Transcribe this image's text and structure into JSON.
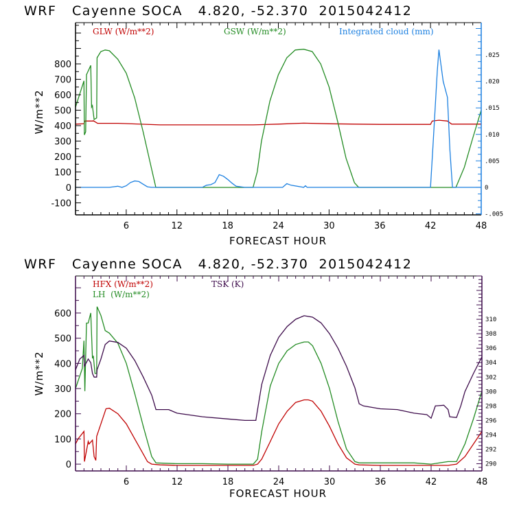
{
  "chart_data": [
    {
      "type": "line",
      "title": "WRF   Cayenne SOCA   4.820, -52.370  2015042412",
      "xlabel": "FORECAST HOUR",
      "ylabel": "W/m**2",
      "xlim": [
        0,
        48
      ],
      "ylim": [
        -178,
        1067
      ],
      "y2lim": [
        -0.0052,
        0.0311
      ],
      "x_ticks": [
        6,
        12,
        18,
        24,
        30,
        36,
        42,
        48
      ],
      "x_tick_labels": [
        "6",
        "12",
        "18",
        "24",
        "30",
        "36",
        "42",
        "48"
      ],
      "y_ticks": [
        -100,
        0,
        100,
        200,
        300,
        400,
        500,
        600,
        700,
        800
      ],
      "y_tick_labels": [
        "-100",
        "0",
        "100",
        "200",
        "300",
        "400",
        "500",
        "600",
        "700",
        "800"
      ],
      "y2_ticks": [
        -0.005,
        0,
        0.005,
        0.01,
        0.015,
        0.02,
        0.025
      ],
      "y2_tick_labels": [
        "-.005",
        "0",
        ".005",
        ".010",
        ".015",
        ".020",
        ".025"
      ],
      "axis_color": "#1a7fe0",
      "legend_placement": "top",
      "series": [
        {
          "name": "GLW (W/m**2)",
          "color": "#c00000",
          "axis": "left",
          "x": [
            0,
            1,
            1.1,
            2,
            2.1,
            2.6,
            3,
            5,
            10,
            15,
            18,
            21,
            24,
            27,
            30,
            33,
            36,
            39,
            42,
            42.2,
            43,
            44,
            44.5,
            46,
            48
          ],
          "y": [
            410,
            412,
            430,
            430,
            432,
            415,
            415,
            415,
            405,
            405,
            405,
            405,
            410,
            416,
            412,
            410,
            408,
            408,
            408,
            430,
            435,
            430,
            410,
            410,
            410
          ]
        },
        {
          "name": "GSW (W/m**2)",
          "color": "#228b22",
          "axis": "left",
          "x": [
            0,
            1,
            1.05,
            1.2,
            1.3,
            1.8,
            1.9,
            2.0,
            2.2,
            2.5,
            2.55,
            3,
            3.5,
            4,
            5,
            6,
            7,
            8,
            9,
            9.5,
            10,
            15,
            21,
            21.5,
            22,
            23,
            24,
            25,
            26,
            27,
            28,
            29,
            30,
            31,
            32,
            33,
            33.5,
            40,
            45,
            46,
            47,
            48
          ],
          "y": [
            520,
            690,
            340,
            360,
            730,
            790,
            520,
            530,
            440,
            450,
            840,
            880,
            890,
            885,
            830,
            740,
            580,
            360,
            120,
            0,
            0,
            0,
            0,
            100,
            300,
            560,
            730,
            840,
            890,
            895,
            880,
            800,
            650,
            430,
            190,
            30,
            0,
            0,
            0,
            130,
            320,
            500
          ]
        },
        {
          "name": "Integrated cloud (mm)",
          "color": "#1a7fe0",
          "axis": "right",
          "x": [
            0,
            4,
            5,
            5.5,
            6,
            6.5,
            7,
            7.5,
            8,
            8.5,
            9,
            15,
            15.5,
            16,
            16.5,
            17,
            17.5,
            18,
            18.5,
            19,
            20,
            24.5,
            25,
            25.5,
            27,
            27.2,
            27.4,
            42,
            42.3,
            42.8,
            43,
            43.5,
            44,
            44.3,
            44.6,
            48
          ],
          "y": [
            0,
            0,
            0.0002,
            0,
            0.0003,
            0.0009,
            0.0012,
            0.0011,
            0.0006,
            0.0001,
            0,
            0,
            0.0004,
            0.0005,
            0.0009,
            0.0024,
            0.0021,
            0.0015,
            0.0008,
            0.0002,
            0,
            0,
            0.0007,
            0.0004,
            0,
            0.0003,
            0,
            0,
            0.008,
            0.022,
            0.026,
            0.02,
            0.017,
            0.007,
            0,
            0
          ]
        }
      ]
    },
    {
      "type": "line",
      "title": "WRF   Cayenne SOCA   4.820, -52.370  2015042412",
      "xlabel": "FORECAST HOUR",
      "ylabel": "W/m**2",
      "xlim": [
        0,
        48
      ],
      "ylim": [
        -27,
        747
      ],
      "y2lim": [
        289,
        316
      ],
      "x_ticks": [
        6,
        12,
        18,
        24,
        30,
        36,
        42,
        48
      ],
      "x_tick_labels": [
        "6",
        "12",
        "18",
        "24",
        "30",
        "36",
        "42",
        "48"
      ],
      "y_ticks": [
        0,
        100,
        200,
        300,
        400,
        500,
        600
      ],
      "y_tick_labels": [
        "0",
        "100",
        "200",
        "300",
        "400",
        "500",
        "600"
      ],
      "y2_ticks": [
        290,
        292,
        294,
        296,
        298,
        300,
        302,
        304,
        306,
        308,
        310
      ],
      "y2_tick_labels": [
        "290",
        "292",
        "294",
        "296",
        "298",
        "300",
        "302",
        "304",
        "306",
        "308",
        "310"
      ],
      "axis_color": "#3c0a4a",
      "legend_placement": "top",
      "series": [
        {
          "name": "HFX (W/m**2)",
          "color": "#c00000",
          "axis": "left",
          "x": [
            0,
            0.3,
            1,
            1.05,
            1.5,
            1.6,
            2,
            2.2,
            2.4,
            2.5,
            3,
            3.6,
            4,
            5,
            6,
            7,
            8,
            8.5,
            9,
            10,
            12,
            15,
            18,
            21,
            21.5,
            22,
            23,
            24,
            25,
            26,
            27,
            27.5,
            28,
            29,
            30,
            31,
            32,
            33,
            33.5,
            36,
            40,
            44,
            45,
            46,
            47,
            48
          ],
          "y": [
            80,
            100,
            130,
            10,
            90,
            80,
            95,
            30,
            15,
            110,
            160,
            220,
            222,
            200,
            160,
            100,
            40,
            10,
            0,
            -3,
            -5,
            -5,
            -5,
            -5,
            0,
            20,
            90,
            160,
            210,
            245,
            255,
            255,
            250,
            210,
            150,
            80,
            25,
            0,
            -3,
            -5,
            -5,
            -5,
            0,
            30,
            80,
            130
          ]
        },
        {
          "name": "LH (W/m**2)",
          "color": "#228b22",
          "axis": "left",
          "x": [
            0,
            0.8,
            1,
            1.1,
            1.3,
            1.5,
            1.8,
            2.0,
            2.1,
            2.3,
            2.5,
            2.55,
            3,
            3.5,
            4,
            5,
            6,
            7,
            8,
            9,
            9.5,
            12,
            15,
            18,
            21,
            21.5,
            22,
            23,
            24,
            25,
            26,
            27,
            27.5,
            28,
            29,
            30,
            31,
            32,
            33,
            33.5,
            36,
            40,
            42,
            44,
            45,
            46,
            47,
            48
          ],
          "y": [
            300,
            380,
            490,
            290,
            560,
            560,
            600,
            420,
            430,
            360,
            360,
            625,
            590,
            530,
            520,
            480,
            400,
            280,
            150,
            30,
            5,
            2,
            2,
            0,
            0,
            20,
            130,
            310,
            400,
            450,
            475,
            485,
            485,
            470,
            400,
            300,
            170,
            60,
            10,
            5,
            5,
            5,
            0,
            10,
            10,
            80,
            180,
            290
          ]
        },
        {
          "name": "TSK (K)",
          "color": "#3c0a4a",
          "axis": "right",
          "x": [
            0,
            0.5,
            1,
            1.05,
            1.5,
            1.8,
            2,
            2.2,
            2.5,
            2.55,
            3,
            3.5,
            4,
            5,
            6,
            7,
            8,
            9,
            9.5,
            10,
            11,
            12,
            15,
            18,
            20,
            21.3,
            21.5,
            22,
            23,
            24,
            25,
            26,
            27,
            28,
            29,
            30,
            31,
            32,
            33,
            33.5,
            34,
            36,
            38,
            40,
            41.5,
            42,
            42.2,
            42.5,
            43.5,
            44,
            44.2,
            45,
            45.5,
            46,
            47,
            48
          ],
          "y": [
            303,
            304.5,
            305,
            303.5,
            304.5,
            304,
            302.5,
            302,
            302,
            303,
            304.5,
            306.5,
            307,
            306.8,
            306,
            304.3,
            302,
            299.5,
            297.5,
            297.5,
            297.5,
            297,
            296.5,
            296.2,
            296,
            296,
            297.5,
            301,
            305,
            307.5,
            309,
            310,
            310.5,
            310.3,
            309.5,
            308,
            306,
            303.5,
            300.5,
            298.3,
            298,
            297.6,
            297.5,
            297,
            296.8,
            296.3,
            297,
            298,
            298.1,
            297.5,
            296.5,
            296.4,
            298,
            300,
            302.5,
            304.8
          ]
        }
      ]
    }
  ],
  "charts": [
    {
      "title": "WRF   Cayenne SOCA   4.820, -52.370  2015042412",
      "legend": [
        "GLW (W/m**2)",
        "GSW (W/m**2)",
        "Integrated cloud (mm)"
      ],
      "xlabel": "FORECAST HOUR",
      "ylabel": "W/m**2"
    },
    {
      "title": "WRF   Cayenne SOCA   4.820, -52.370  2015042412",
      "legend": [
        "HFX (W/m**2)",
        "LH  (W/m**2)",
        "TSK (K)"
      ],
      "xlabel": "FORECAST HOUR",
      "ylabel": "W/m**2"
    }
  ]
}
